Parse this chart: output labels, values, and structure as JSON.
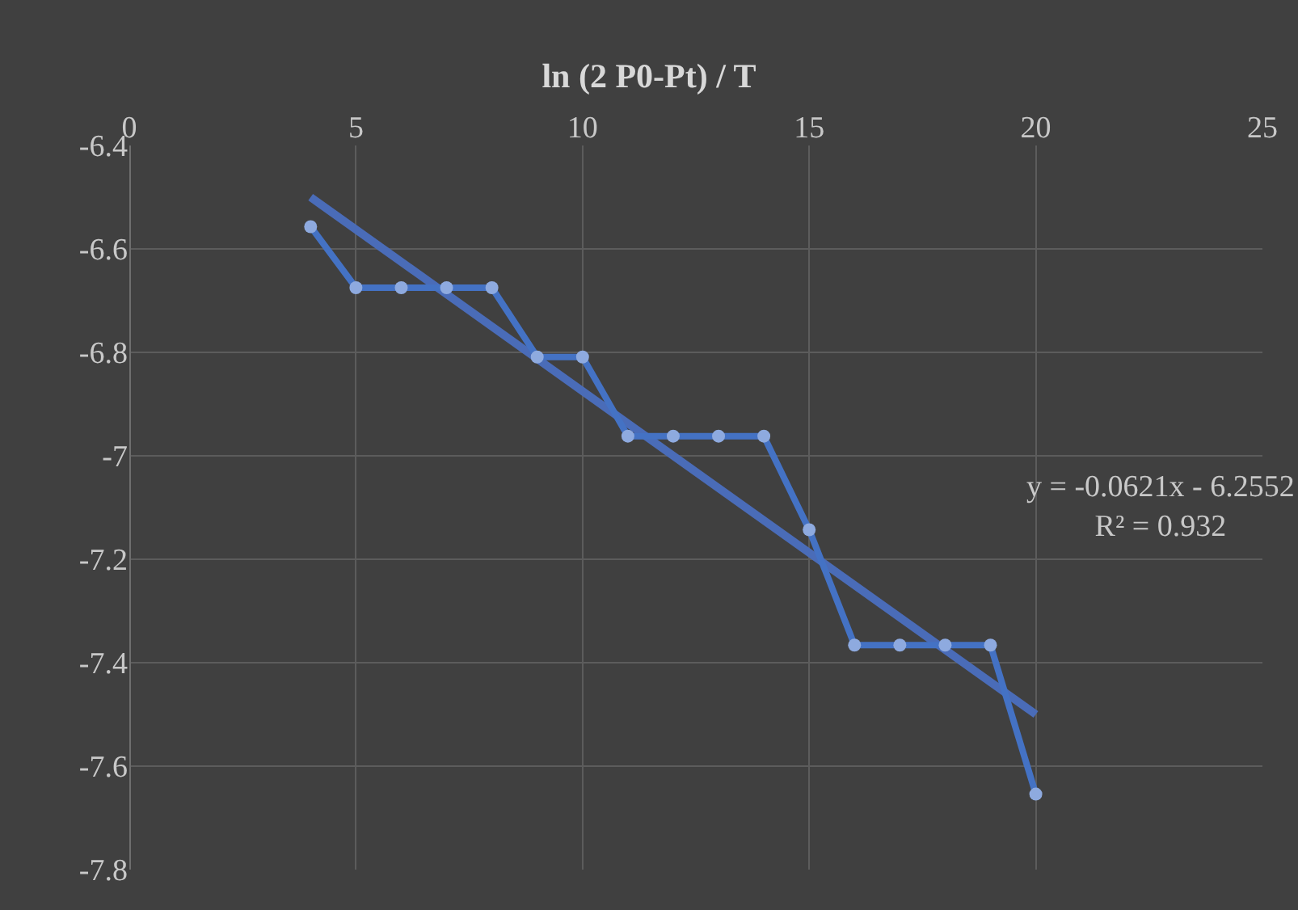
{
  "chart_data": {
    "type": "line",
    "title": "ln (2 P0-Pt) / T",
    "series": [
      {
        "color": "#4472c4",
        "marker": "circle",
        "x": [
          4,
          5,
          6,
          7,
          8,
          9,
          10,
          11,
          12,
          13,
          14,
          15,
          16,
          17,
          18,
          19,
          20
        ],
        "values": [
          -6.557,
          -6.675,
          -6.675,
          -6.675,
          -6.675,
          -6.809,
          -6.809,
          -6.962,
          -6.962,
          -6.962,
          -6.962,
          -7.143,
          -7.366,
          -7.366,
          -7.366,
          -7.366,
          -7.654
        ]
      },
      {
        "color": "#4a6cb8",
        "marker": "none",
        "x": [
          4,
          20
        ],
        "values": [
          -6.5,
          -7.5
        ]
      }
    ],
    "annotations": [
      "y = -0.0621x - 6.2552\nR² = 0.932"
    ],
    "xlim": [
      0,
      25
    ],
    "xticks": [
      0,
      5,
      10,
      15,
      20,
      25
    ],
    "ylim": [
      -7.8,
      -6.4
    ],
    "yticks": [
      -7.8,
      -7.6,
      -7.4,
      -7.2,
      -7,
      -6.8,
      -6.6,
      -6.4
    ],
    "grid": true
  }
}
